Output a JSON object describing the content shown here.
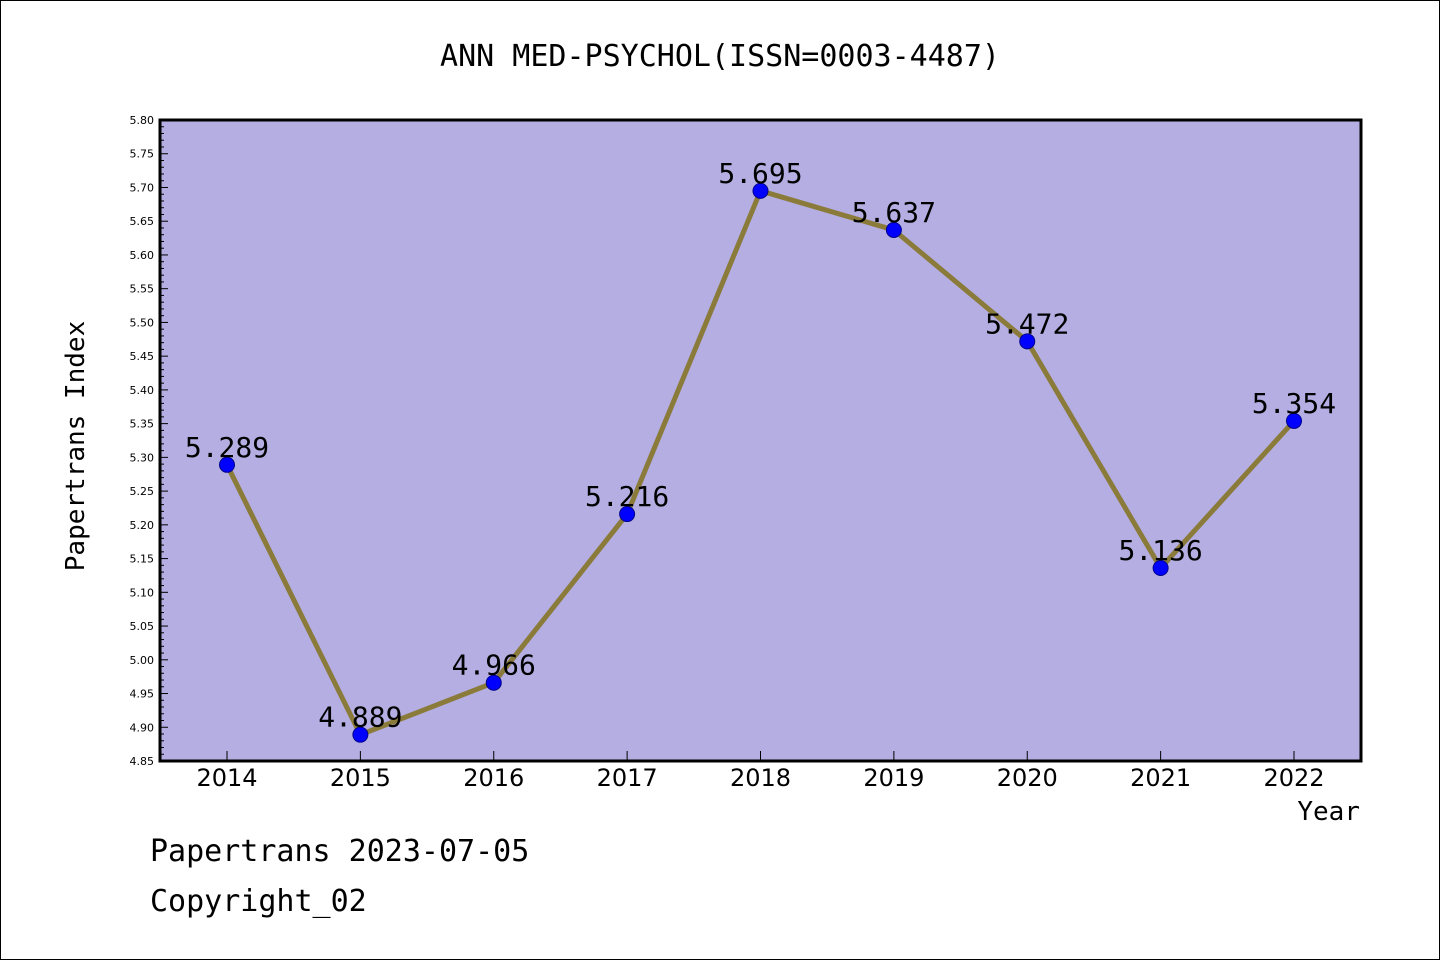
{
  "footer": {
    "line1": "Papertrans 2023-07-05",
    "line2": "Copyright_02"
  },
  "colors": {
    "plot_background": "#b4aee2",
    "line": "#8b7b3a",
    "marker": "#0000ff",
    "frame": "#000000"
  },
  "chart_data": {
    "type": "line",
    "title": "ANN MED-PSYCHOL(ISSN=0003-4487)",
    "xlabel": "Year",
    "ylabel": "Papertrans Index",
    "categories": [
      "2014",
      "2015",
      "2016",
      "2017",
      "2018",
      "2019",
      "2020",
      "2021",
      "2022"
    ],
    "series": [
      {
        "values": [
          5.289,
          4.889,
          4.966,
          5.216,
          5.695,
          5.637,
          5.472,
          5.136,
          5.354
        ],
        "labels": [
          "5.289",
          "4.889",
          "4.966",
          "5.216",
          "5.695",
          "5.637",
          "5.472",
          "5.136",
          "5.354"
        ]
      }
    ],
    "ylim": [
      4.85,
      5.8
    ],
    "yticks": [
      "4.85",
      "4.90",
      "4.95",
      "5.00",
      "5.05",
      "5.10",
      "5.15",
      "5.20",
      "5.25",
      "5.30",
      "5.35",
      "5.40",
      "5.45",
      "5.50",
      "5.55",
      "5.60",
      "5.65",
      "5.70",
      "5.75",
      "5.80"
    ],
    "grid": false,
    "legend": "none"
  }
}
